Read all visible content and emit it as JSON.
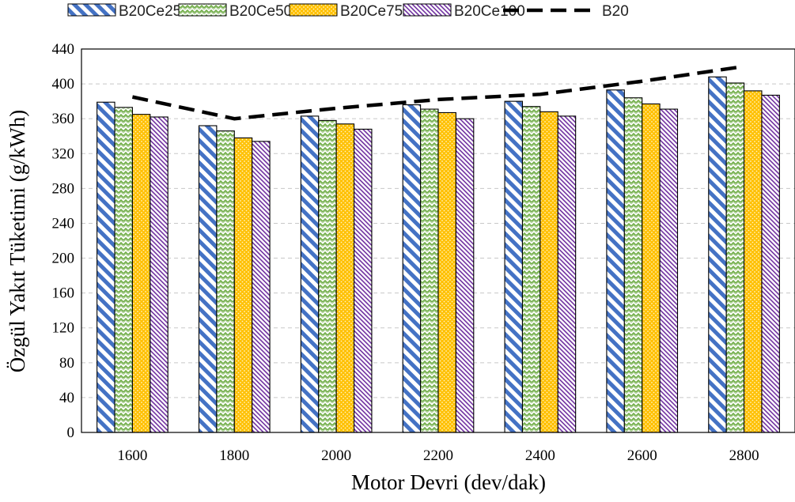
{
  "chart_data": {
    "type": "bar",
    "title": "",
    "xlabel": "Motor Devri (dev/dak)",
    "ylabel": "Özgül Yakıt Tüketimi (g/kWh)",
    "ylim": [
      0,
      440
    ],
    "yticks": [
      0,
      40,
      80,
      120,
      160,
      200,
      240,
      280,
      320,
      360,
      400,
      440
    ],
    "categories": [
      "1600",
      "1800",
      "2000",
      "2200",
      "2400",
      "2600",
      "2800"
    ],
    "grid": true,
    "legend_position": "top",
    "series": [
      {
        "name": "B20Ce25",
        "kind": "bar",
        "pattern": "diagonal-stripes",
        "color": "#4472C4",
        "values": [
          379,
          352,
          363,
          376,
          380,
          393,
          408
        ]
      },
      {
        "name": "B20Ce50",
        "kind": "bar",
        "pattern": "zigzag",
        "color": "#70AD47",
        "values": [
          373,
          346,
          358,
          371,
          374,
          384,
          401
        ]
      },
      {
        "name": "B20Ce75",
        "kind": "bar",
        "pattern": "dots",
        "color": "#FFC000",
        "values": [
          365,
          338,
          354,
          367,
          368,
          377,
          392
        ]
      },
      {
        "name": "B20Ce100",
        "kind": "bar",
        "pattern": "fine-diagonal",
        "color": "#7030A0",
        "values": [
          362,
          334,
          348,
          360,
          363,
          371,
          387
        ]
      },
      {
        "name": "B20",
        "kind": "line",
        "style": "dashed",
        "color": "#000000",
        "values": [
          385,
          360,
          372,
          382,
          388,
          403,
          420
        ]
      }
    ]
  }
}
